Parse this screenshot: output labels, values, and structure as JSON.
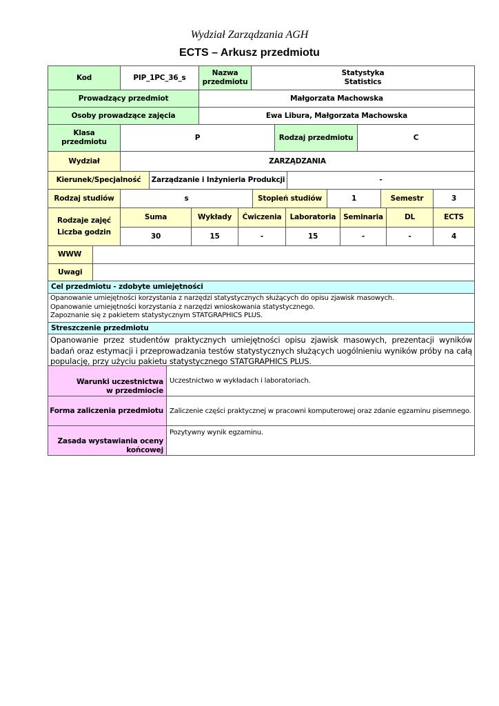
{
  "header": {
    "faculty": "Wydział Zarządzania AGH",
    "title": "ECTS – Arkusz przedmiotu"
  },
  "course": {
    "kod_label": "Kod",
    "kod": "PIP_1PC_36_s",
    "nazwa_label": "Nazwa przedmiotu",
    "nazwa_pl": "Statystyka",
    "nazwa_en": "Statistics",
    "prowadzacy_label": "Prowadzący przedmiot",
    "prowadzacy": "Małgorzata Machowska",
    "osoby_label": "Osoby prowadzące zajęcia",
    "osoby": "Ewa Libura, Małgorzata Machowska",
    "klasa_label": "Klasa przedmiotu",
    "klasa": "P",
    "rodzaj_przedmiotu_label": "Rodzaj przedmiotu",
    "rodzaj_przedmiotu": "C",
    "wydzial_label": "Wydział",
    "wydzial": "ZARZĄDZANIA",
    "kierunek_label": "Kierunek/Specjalność",
    "kierunek": "Zarządzanie i Inżynieria Produkcji",
    "specjalnosc": "-",
    "rodzaj_studiow_label": "Rodzaj studiów",
    "rodzaj_studiow": "s",
    "stopien_label": "Stopień studiów",
    "stopien": "1",
    "semestr_label": "Semestr",
    "semestr": "3",
    "zajecia_label1": "Rodzaje zajęć",
    "zajecia_label2": "Liczba godzin",
    "hours_headers": [
      "Suma",
      "Wykłady",
      "Ćwiczenia",
      "Laboratoria",
      "Seminaria",
      "DL",
      "ECTS"
    ],
    "hours_values": [
      "30",
      "15",
      "-",
      "15",
      "-",
      "-",
      "4"
    ],
    "www_label": "WWW",
    "www": "",
    "uwagi_label": "Uwagi",
    "uwagi": ""
  },
  "cel": {
    "label": "Cel przedmiotu - zdobyte umiejętności",
    "lines": [
      "Opanowanie umiejętności korzystania z narzędzi statystycznych służących do opisu zjawisk masowych.",
      "Opanowanie umiejętności korzystania z narzędzi wnioskowania statystycznego.",
      "Zapoznanie się z pakietem statystycznym STATGRAPHICS PLUS."
    ]
  },
  "streszczenie": {
    "label": "Streszczenie przedmiotu",
    "text": "Opanowanie przez studentów praktycznych umiejętności opisu zjawisk masowych, prezentacji wyników badań oraz estymacji i przeprowadzania testów statystycznych służących uogólnieniu wyników próby na całą populację, przy użyciu pakietu statystycznego STATGRAPHICS PLUS."
  },
  "warunki": {
    "label1": "Warunki uczestnictwa",
    "label2": "w przedmiocie",
    "text": "Uczestnictwo w wykładach i laboratoriach."
  },
  "forma": {
    "label": "Forma zaliczenia przedmiotu",
    "text": "Zaliczenie części praktycznej w pracowni komputerowej oraz zdanie egzaminu pisemnego."
  },
  "zasada": {
    "label1": "Zasada wystawiania oceny",
    "label2": "końcowej",
    "text": "Pozytywny wynik egzaminu."
  },
  "colors": {
    "green": "#ccffcc",
    "yellow": "#ffffcc",
    "cyan": "#ccffff",
    "pink": "#ffccff"
  }
}
